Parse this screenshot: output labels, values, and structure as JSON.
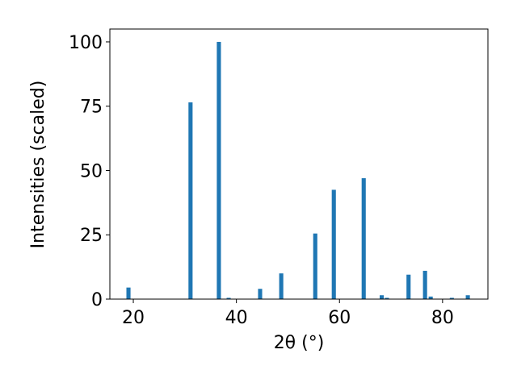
{
  "chart_data": {
    "type": "bar",
    "x_label": "2θ (°)",
    "y_label": "Intensities (scaled)",
    "x": [
      19.06,
      31.1,
      36.6,
      38.5,
      44.6,
      48.7,
      55.3,
      58.9,
      64.7,
      68.2,
      69.2,
      73.4,
      76.6,
      77.7,
      81.8,
      84.9
    ],
    "values": [
      4.5,
      76.5,
      100,
      0.5,
      4,
      10,
      25.5,
      42.5,
      47,
      1.5,
      0.5,
      9.5,
      11,
      1,
      0.5,
      1.5
    ],
    "color": "#1f77b4",
    "xlim": [
      15.45,
      88.8
    ],
    "xticks": [
      20,
      40,
      60,
      80
    ],
    "ylim": [
      0,
      105
    ],
    "yticks": [
      0,
      25,
      50,
      75,
      100
    ]
  }
}
